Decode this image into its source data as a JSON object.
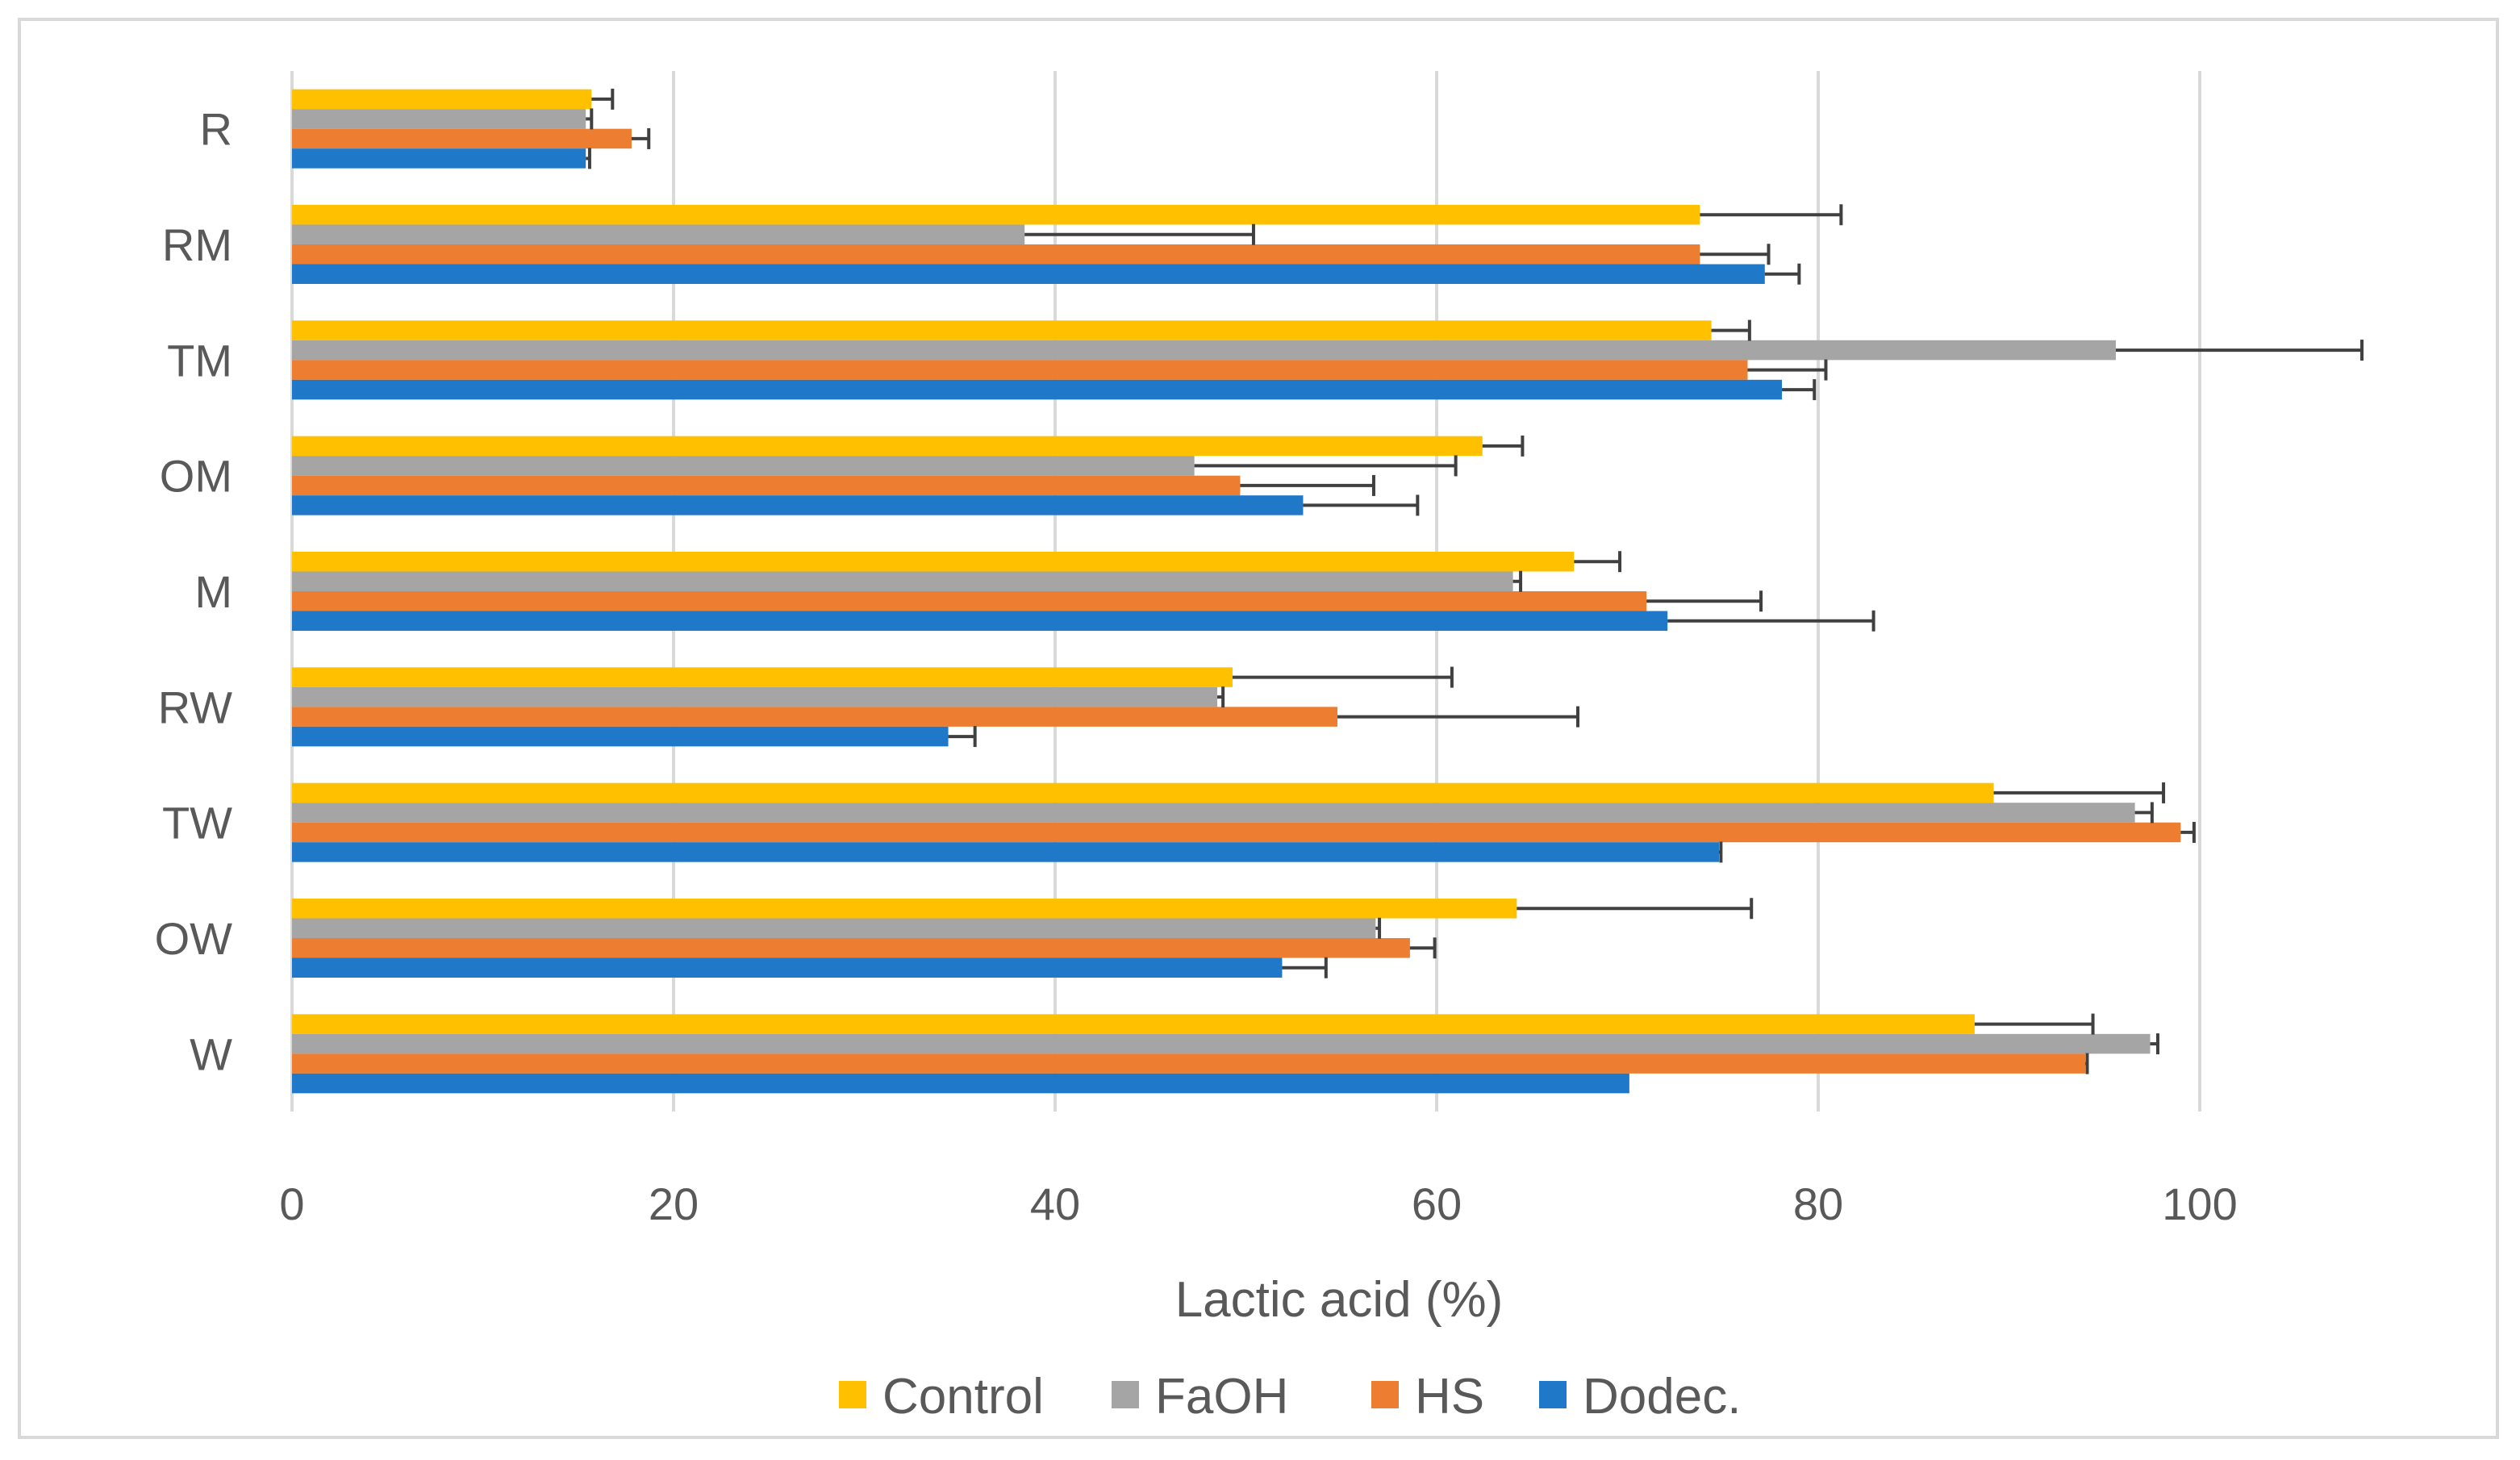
{
  "chart_data": {
    "type": "bar",
    "orientation": "horizontal",
    "categories": [
      "R",
      "RM",
      "TM",
      "OM",
      "M",
      "RW",
      "TW",
      "OW",
      "W"
    ],
    "series": [
      {
        "name": "Control",
        "color": "#ffc000",
        "values": [
          15.7,
          73.8,
          74.4,
          62.4,
          67.2,
          49.3,
          89.2,
          64.2,
          88.2
        ],
        "errors": [
          1.1,
          7.4,
          2.0,
          2.1,
          2.4,
          11.5,
          8.9,
          12.3,
          6.2
        ]
      },
      {
        "name": "FaOH",
        "color": "#a5a5a5",
        "values": [
          15.4,
          38.4,
          95.6,
          47.3,
          64.0,
          48.5,
          96.6,
          56.8,
          97.4
        ],
        "errors": [
          0.3,
          12.0,
          12.9,
          13.7,
          0.4,
          0.3,
          0.9,
          0.2,
          0.4
        ]
      },
      {
        "name": "HS",
        "color": "#ed7d31",
        "values": [
          17.8,
          73.8,
          76.3,
          49.7,
          71.0,
          54.8,
          99.0,
          58.6,
          94.0
        ],
        "errors": [
          0.9,
          3.6,
          4.1,
          7.0,
          6.0,
          12.6,
          0.7,
          1.3,
          0.1
        ]
      },
      {
        "name": "Dodec.",
        "color": "#1f78c8",
        "values": [
          15.4,
          77.2,
          78.1,
          53.0,
          72.1,
          34.4,
          74.8,
          51.9,
          70.1
        ],
        "errors": [
          0.2,
          1.8,
          1.7,
          6.0,
          10.8,
          1.4,
          0.1,
          2.3,
          0.0
        ]
      }
    ],
    "xlabel": "Lactic acid (%)",
    "xticks": [
      "0",
      "20",
      "40",
      "60",
      "80",
      "100"
    ],
    "xlim": [
      0,
      120
    ],
    "grid": true,
    "legend": "bottom"
  }
}
